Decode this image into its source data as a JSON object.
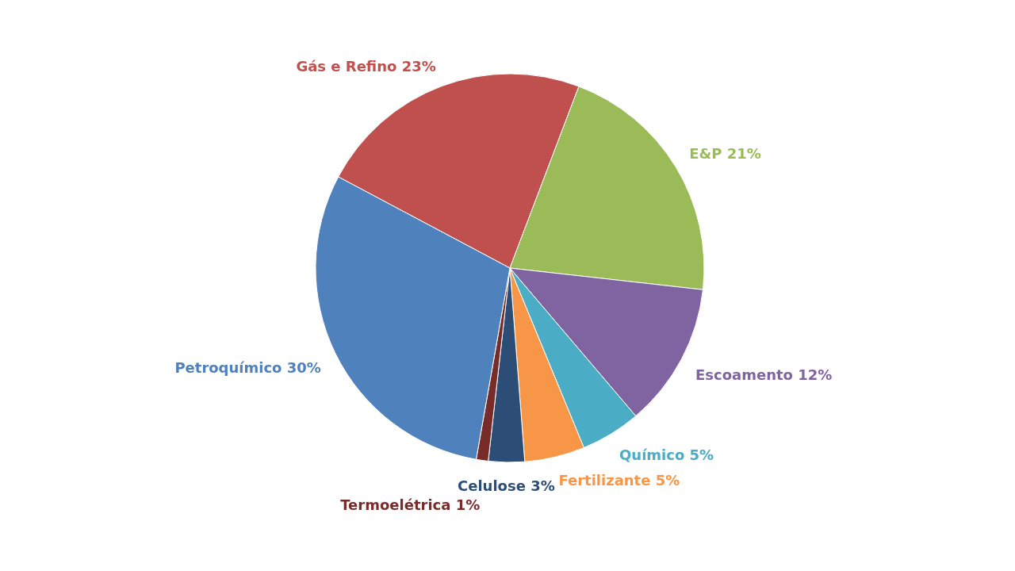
{
  "chart_data": {
    "type": "pie",
    "categories": [
      "Gás e Refino",
      "E&P",
      "Escoamento",
      "Químico",
      "Fertilizante",
      "Celulose",
      "Termoelétrica",
      "Petroquímico"
    ],
    "values": [
      23,
      21,
      12,
      5,
      5,
      3,
      1,
      30
    ],
    "value_labels": [
      "23%",
      "21%",
      "12%",
      "5%",
      "5%",
      "3%",
      "1%",
      "30%"
    ],
    "colors": [
      "#c0504d",
      "#9bbb59",
      "#8064a2",
      "#4bacc6",
      "#f79646",
      "#2c4d75",
      "#772c2a",
      "#4f81bd"
    ]
  }
}
